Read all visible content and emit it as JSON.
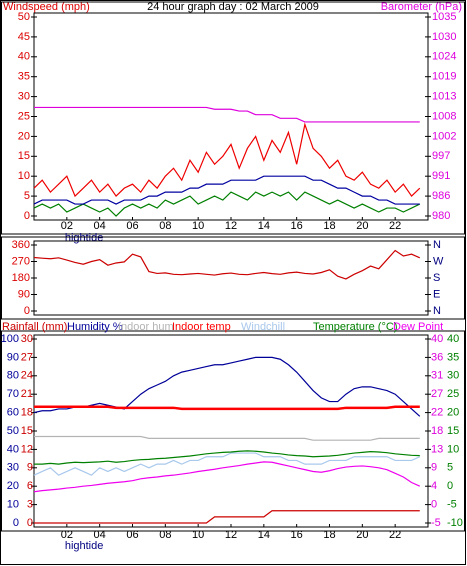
{
  "chart_data": [
    {
      "type": "line",
      "title": "24 hour graph day : 02 March 2009",
      "ylabel": "Windspeed (mph)",
      "y2label": "Barometer (hPa)",
      "y_color": "#dd0000",
      "y2_color": "#dd00dd",
      "x": [
        0,
        0.5,
        1,
        1.5,
        2,
        2.5,
        3,
        3.5,
        4,
        4.5,
        5,
        5.5,
        6,
        6.5,
        7,
        7.5,
        8,
        8.5,
        9,
        9.5,
        10,
        10.5,
        11,
        11.5,
        12,
        12.5,
        13,
        13.5,
        14,
        14.5,
        15,
        15.5,
        16,
        16.5,
        17,
        17.5,
        18,
        18.5,
        19,
        19.5,
        20,
        20.5,
        21,
        21.5,
        22,
        22.5,
        23,
        23.5
      ],
      "xlim": [
        0,
        24
      ],
      "xticks": [
        {
          "value": 2,
          "label": "02"
        },
        {
          "value": 4,
          "label": "04"
        },
        {
          "value": 6,
          "label": "06"
        },
        {
          "value": 8,
          "label": "08"
        },
        10,
        12,
        14,
        16,
        18,
        20,
        22
      ],
      "ylim": [
        0,
        50
      ],
      "yticks": [
        0,
        5,
        10,
        15,
        20,
        25,
        30,
        35,
        40,
        45,
        50
      ],
      "y2lim": [
        980,
        1035
      ],
      "y2ticks": [
        980,
        {
          "value": 985.5,
          "label": "986"
        },
        991,
        {
          "value": 996.5,
          "label": "997"
        },
        1002,
        {
          "value": 1007.5,
          "label": "1008"
        },
        1013,
        {
          "value": 1018.5,
          "label": "1019"
        },
        1024,
        {
          "value": 1029.5,
          "label": "1030"
        },
        1035
      ],
      "annotations": [
        {
          "text": "hightide",
          "x": 2
        }
      ],
      "series": [
        {
          "color": "#ee0000",
          "values": [
            7,
            9,
            6,
            8,
            10,
            5,
            7,
            9,
            6,
            8,
            5,
            7,
            8,
            6,
            9,
            7,
            10,
            12,
            9,
            14,
            11,
            16,
            13,
            15,
            18,
            12,
            17,
            20,
            14,
            19,
            16,
            21,
            13,
            23,
            17,
            15,
            12,
            14,
            10,
            9,
            11,
            8,
            7,
            9,
            6,
            8,
            5,
            7
          ]
        },
        {
          "color": "#008000",
          "values": [
            2,
            3,
            2,
            3,
            1,
            2,
            3,
            2,
            1,
            2,
            0,
            2,
            3,
            2,
            3,
            2,
            4,
            3,
            4,
            5,
            3,
            4,
            5,
            4,
            6,
            5,
            4,
            6,
            5,
            6,
            5,
            6,
            4,
            6,
            5,
            4,
            3,
            4,
            3,
            2,
            3,
            2,
            1,
            2,
            2,
            1,
            2,
            3
          ]
        },
        {
          "color": "#0000a0",
          "values": [
            3,
            4,
            4,
            4,
            4,
            3,
            3,
            4,
            4,
            4,
            3,
            4,
            4,
            4,
            5,
            5,
            6,
            6,
            6,
            7,
            7,
            8,
            8,
            8,
            9,
            9,
            9,
            9,
            10,
            10,
            10,
            10,
            10,
            10,
            9,
            9,
            8,
            7,
            7,
            6,
            5,
            5,
            4,
            4,
            3,
            3,
            3,
            3
          ]
        },
        {
          "color": "#dd00dd",
          "axis": "y2",
          "values": [
            1010,
            1010,
            1010,
            1010,
            1010,
            1010,
            1010,
            1010,
            1010,
            1010,
            1010,
            1010,
            1010,
            1010,
            1010,
            1010,
            1010,
            1010,
            1010,
            1010,
            1010,
            1010,
            1009.5,
            1009.5,
            1009.5,
            1009,
            1009,
            1008,
            1008,
            1008,
            1007,
            1007,
            1007,
            1006,
            1006,
            1006,
            1006,
            1006,
            1006,
            1006,
            1006,
            1006,
            1006,
            1006,
            1006,
            1006,
            1006,
            1006
          ]
        }
      ]
    },
    {
      "type": "line",
      "y_color": "#dd0000",
      "y2_color": "#000080",
      "x": [
        0,
        0.5,
        1,
        1.5,
        2,
        2.5,
        3,
        3.5,
        4,
        4.5,
        5,
        5.5,
        6,
        6.5,
        7,
        7.5,
        8,
        8.5,
        9,
        9.5,
        10,
        10.5,
        11,
        11.5,
        12,
        12.5,
        13,
        13.5,
        14,
        14.5,
        15,
        15.5,
        16,
        16.5,
        17,
        17.5,
        18,
        18.5,
        19,
        19.5,
        20,
        20.5,
        21,
        21.5,
        22,
        22.5,
        23,
        23.5
      ],
      "xlim": [
        0,
        24
      ],
      "ylim": [
        0,
        360
      ],
      "yticks": [
        0,
        90,
        180,
        270,
        360
      ],
      "y2lim": [
        0,
        360
      ],
      "y2ticks": [
        {
          "value": 0,
          "label": "N"
        },
        {
          "value": 90,
          "label": "E"
        },
        {
          "value": 180,
          "label": "S"
        },
        {
          "value": 270,
          "label": "W"
        },
        {
          "value": 360,
          "label": "N"
        }
      ],
      "series": [
        {
          "color": "#cc0000",
          "values": [
            292,
            288,
            285,
            290,
            278,
            265,
            255,
            270,
            280,
            250,
            262,
            268,
            310,
            295,
            215,
            205,
            208,
            200,
            198,
            202,
            205,
            200,
            196,
            203,
            207,
            200,
            198,
            205,
            210,
            204,
            200,
            208,
            212,
            205,
            202,
            210,
            225,
            190,
            175,
            200,
            220,
            245,
            230,
            280,
            330,
            300,
            310,
            290
          ]
        }
      ]
    },
    {
      "type": "line",
      "y_color": "#000099",
      "y2_color": "#008000",
      "y3_color": "#cc0000",
      "y4_color": "#dd00dd",
      "x": [
        0,
        0.5,
        1,
        1.5,
        2,
        2.5,
        3,
        3.5,
        4,
        4.5,
        5,
        5.5,
        6,
        6.5,
        7,
        7.5,
        8,
        8.5,
        9,
        9.5,
        10,
        10.5,
        11,
        11.5,
        12,
        12.5,
        13,
        13.5,
        14,
        14.5,
        15,
        15.5,
        16,
        16.5,
        17,
        17.5,
        18,
        18.5,
        19,
        19.5,
        20,
        20.5,
        21,
        21.5,
        22,
        22.5,
        23,
        23.5
      ],
      "xlim": [
        0,
        24
      ],
      "xticks": [
        {
          "value": 2,
          "label": "02"
        },
        {
          "value": 4,
          "label": "04"
        },
        {
          "value": 6,
          "label": "06"
        },
        {
          "value": 8,
          "label": "08"
        },
        10,
        12,
        14,
        16,
        18,
        20,
        22
      ],
      "ylim": [
        0,
        100
      ],
      "yticks": [
        0,
        10,
        20,
        30,
        40,
        50,
        60,
        70,
        80,
        90,
        100
      ],
      "y3lim": [
        0,
        30
      ],
      "y3ticks": [
        0,
        3,
        6,
        9,
        12,
        15,
        18,
        21,
        24,
        27,
        30
      ],
      "y2lim": [
        -10,
        40
      ],
      "y2ticks": [
        -10,
        -5,
        0,
        5,
        10,
        15,
        20,
        25,
        30,
        35,
        40
      ],
      "y4lim": [
        -5,
        40
      ],
      "y4ticks": [
        -5,
        {
          "value": -0.5,
          "label": "0"
        },
        4,
        {
          "value": 8.5,
          "label": "9"
        },
        13,
        {
          "value": 17.5,
          "label": "18"
        },
        22,
        {
          "value": 26.5,
          "label": "27"
        },
        31,
        {
          "value": 35.5,
          "label": "36"
        },
        40
      ],
      "annotations": [
        {
          "text": "hightide",
          "x": 2
        }
      ],
      "series": [
        {
          "name": "Rainfall (mm)",
          "color": "#cc0000",
          "axis": "y3",
          "values": [
            0,
            0,
            0,
            0,
            0,
            0,
            0,
            0,
            0,
            0,
            0,
            0,
            0,
            0,
            0,
            0,
            0,
            0,
            0,
            0,
            0,
            0,
            1,
            1,
            1,
            1,
            1,
            1,
            1,
            2,
            2,
            2,
            2,
            2,
            2,
            2,
            2,
            2,
            2,
            2,
            2,
            2,
            2,
            2,
            2,
            2,
            2,
            2
          ]
        },
        {
          "name": "Humidity %",
          "color": "#000099",
          "values": [
            60,
            61,
            61,
            62,
            62,
            63,
            63,
            64,
            65,
            64,
            63,
            62,
            66,
            70,
            73,
            75,
            77,
            80,
            82,
            83,
            84,
            85,
            86,
            86,
            87,
            88,
            89,
            90,
            90,
            90,
            89,
            86,
            82,
            77,
            72,
            68,
            66,
            66,
            70,
            73,
            74,
            74,
            73,
            72,
            70,
            66,
            62,
            58
          ]
        },
        {
          "name": "Indoor hum",
          "color": "#b4b4b4",
          "values": [
            47,
            47,
            47,
            47,
            47,
            47,
            47,
            47,
            47,
            47,
            47,
            47,
            47,
            47,
            46,
            46,
            46,
            46,
            46,
            46,
            46,
            46,
            46,
            46,
            46,
            46,
            46,
            46,
            46,
            46,
            46,
            46,
            46,
            46,
            45,
            45,
            45,
            45,
            45,
            45,
            45,
            45,
            46,
            46,
            46,
            46,
            46,
            46
          ]
        },
        {
          "name": "Indoor temp",
          "color": "#ff0000",
          "axis": "y2",
          "line_width": 2.5,
          "values": [
            21.6,
            21.6,
            21.6,
            21.6,
            21.6,
            21.6,
            21.6,
            21.6,
            21.6,
            21.6,
            21.3,
            21.3,
            21.3,
            21.3,
            21.3,
            21.3,
            21.3,
            21.3,
            21,
            21,
            21,
            21,
            21,
            21,
            21,
            21,
            21,
            21,
            21,
            21,
            21,
            21,
            21,
            21,
            21,
            21,
            21,
            21,
            21.3,
            21.3,
            21.3,
            21.3,
            21.3,
            21.3,
            21.6,
            21.6,
            21.6,
            21.6
          ]
        },
        {
          "name": "Windchill",
          "color": "#a8c8ec",
          "axis": "y2",
          "values": [
            3,
            4,
            5,
            3,
            4,
            5,
            4,
            3,
            5,
            4,
            5,
            4,
            5,
            6,
            5,
            6,
            6,
            7,
            6,
            7,
            7,
            8,
            8,
            8,
            9,
            9,
            9,
            9,
            8,
            8,
            8,
            7,
            7,
            6,
            6,
            6,
            7,
            7,
            7,
            8,
            8,
            8,
            8,
            8,
            7,
            7,
            7,
            8
          ]
        },
        {
          "name": "Temperature (°C)",
          "color": "#008000",
          "axis": "y2",
          "values": [
            6,
            6,
            6.2,
            6,
            6.3,
            6.5,
            6.4,
            6.5,
            6.6,
            6.8,
            6.5,
            6.7,
            7,
            7.2,
            7.3,
            7.5,
            7.6,
            7.8,
            8,
            8.2,
            8.5,
            8.8,
            9,
            9.2,
            9.3,
            9.5,
            9.6,
            9.5,
            9.3,
            9,
            8.8,
            8.5,
            8.3,
            8.2,
            8,
            8.1,
            8.2,
            8.4,
            8.7,
            9,
            9.2,
            9.4,
            9.3,
            9.1,
            8.8,
            8.6,
            8.4,
            8.3
          ]
        },
        {
          "name": "Dew Point",
          "color": "#ee00ee",
          "axis": "y2",
          "values": [
            -1.5,
            -1.2,
            -1,
            -0.8,
            -0.5,
            -0.3,
            0,
            0.2,
            0.5,
            0.8,
            1,
            1.2,
            1.5,
            2,
            2.3,
            2.5,
            2.8,
            3,
            3.3,
            3.6,
            4,
            4.3,
            4.6,
            5,
            5.3,
            5.6,
            6,
            6.3,
            6.6,
            6.5,
            6,
            5.5,
            5,
            4.5,
            4,
            3.8,
            4.2,
            4.8,
            5.2,
            5.4,
            5.5,
            5.3,
            5,
            4.5,
            3.5,
            2.5,
            1,
            0
          ]
        }
      ]
    }
  ]
}
